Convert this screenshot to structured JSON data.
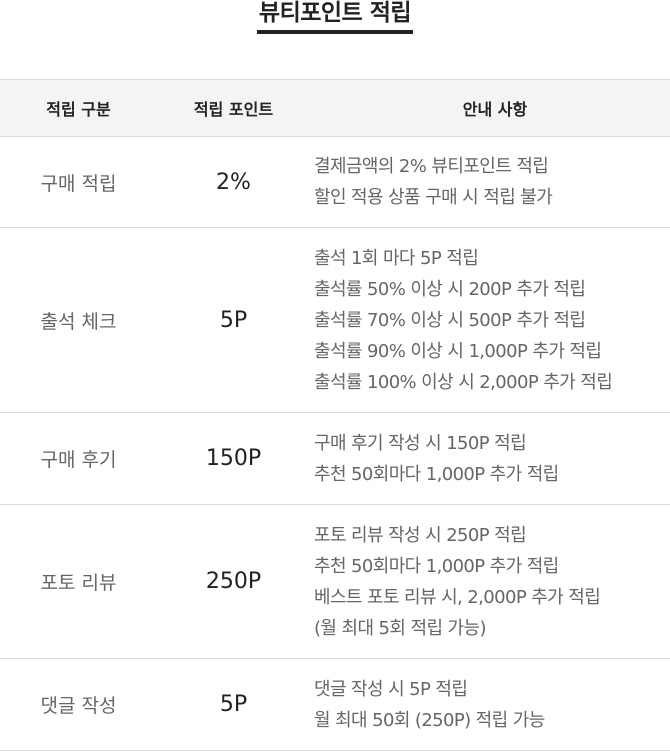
{
  "title": "뷰티포인트 적립",
  "headers": {
    "category": "적립 구분",
    "points": "적립 포인트",
    "info": "안내 사항"
  },
  "rows": [
    {
      "category": "구매 적립",
      "points": "2%",
      "info": [
        "결제금액의 2% 뷰티포인트 적립",
        "할인 적용 상품 구매 시 적립 불가"
      ]
    },
    {
      "category": "출석 체크",
      "points": "5P",
      "info": [
        "출석 1회 마다 5P 적립",
        "출석률 50% 이상 시 200P 추가 적립",
        "출석률 70% 이상 시 500P 추가 적립",
        "출석률 90% 이상 시 1,000P 추가 적립",
        "출석률 100% 이상 시 2,000P 추가 적립"
      ]
    },
    {
      "category": "구매 후기",
      "points": "150P",
      "info": [
        "구매 후기 작성 시 150P 적립",
        "추천 50회마다 1,000P 추가 적립"
      ]
    },
    {
      "category": "포토 리뷰",
      "points": "250P",
      "info": [
        "포토 리뷰 작성 시 250P 적립",
        "추천 50회마다 1,000P 추가 적립",
        "베스트 포토 리뷰 시, 2,000P 추가 적립",
        "(월 최대 5회 적립 가능)"
      ]
    },
    {
      "category": "댓글 작성",
      "points": "5P",
      "info": [
        "댓글 작성 시 5P 적립",
        "월 최대 50회 (250P) 적립 가능"
      ]
    }
  ]
}
